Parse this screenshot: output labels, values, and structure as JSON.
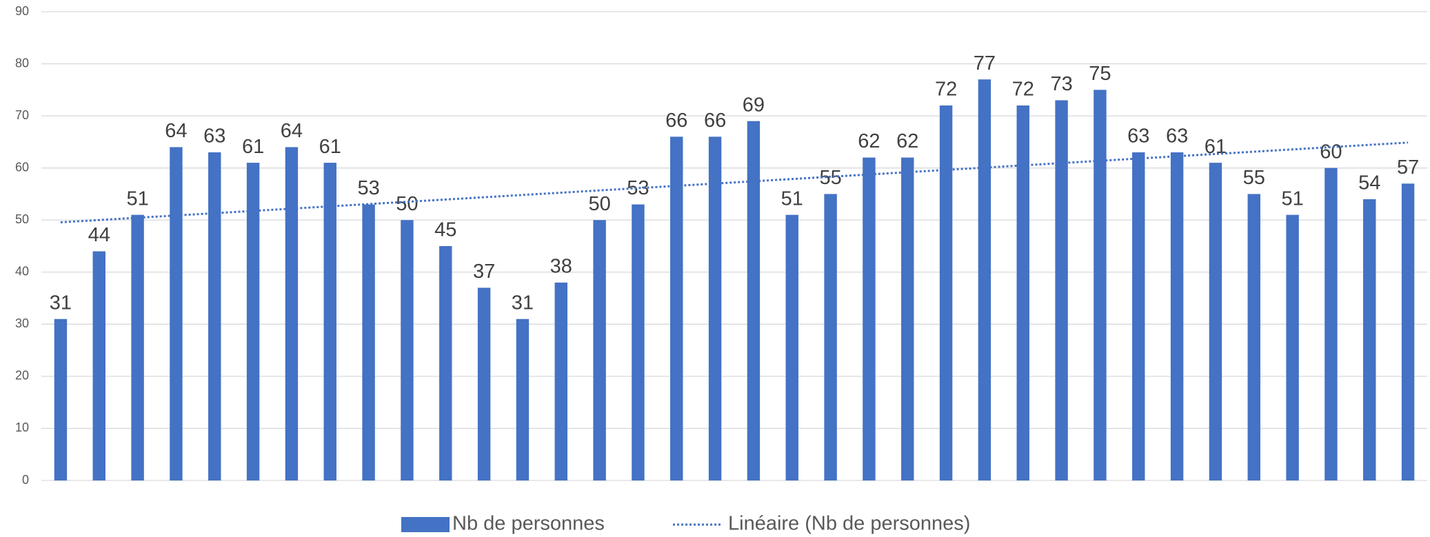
{
  "chart_data": {
    "type": "bar",
    "series": [
      {
        "name": "Nb de personnes",
        "color": "#4472c4",
        "values": [
          31,
          44,
          51,
          64,
          63,
          61,
          64,
          61,
          53,
          50,
          45,
          37,
          31,
          38,
          50,
          53,
          66,
          66,
          69,
          51,
          55,
          62,
          62,
          72,
          77,
          72,
          73,
          75,
          63,
          63,
          61,
          55,
          51,
          60,
          54,
          57
        ]
      }
    ],
    "trendline": {
      "name": "Linéaire (Nb de personnes)",
      "kind": "linear",
      "color": "#4472c4"
    },
    "ylim": [
      0,
      90
    ],
    "yticks": [
      0,
      10,
      20,
      30,
      40,
      50,
      60,
      70,
      80,
      90
    ],
    "grid": true,
    "legend": "bottom"
  }
}
